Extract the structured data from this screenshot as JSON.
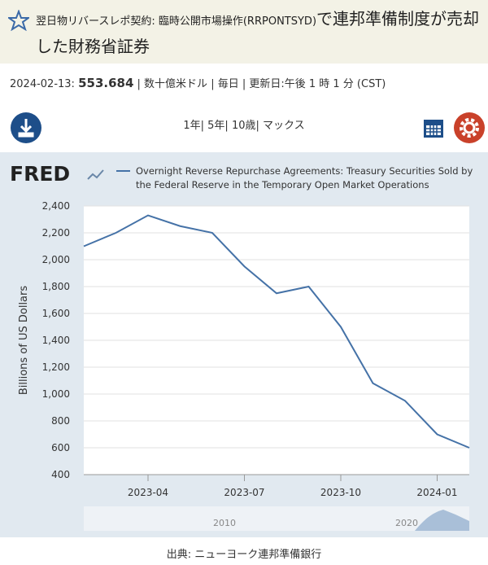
{
  "header": {
    "title_code": "翌日物リバースレポ契約: 臨時公開市場操作(RRPONTSYD)",
    "title_rest": "で連邦準備制度が売却した財務省証券"
  },
  "info": {
    "date": "2024-02-13:",
    "value": "553.684",
    "details": "| 数十億米ドル | 毎日 | 更新日:午後 1 時 1 分 (CST)"
  },
  "ranges": "1年| 5年| 10歳| マックス",
  "source": "出典: ニューヨーク連邦準備銀行",
  "chart_data": {
    "type": "line",
    "logo": "FRED",
    "legend": [
      "Overnight Reverse Repurchase Agreements: Treasury Securities Sold by",
      "the Federal Reserve in the Temporary Open Market Operations"
    ],
    "ylabel": "Billions of US Dollars",
    "x": [
      "2023-02",
      "2023-03",
      "2023-04",
      "2023-05",
      "2023-06",
      "2023-07",
      "2023-08",
      "2023-09",
      "2023-10",
      "2023-11",
      "2023-12",
      "2024-01",
      "2024-02"
    ],
    "series": [
      {
        "name": "RRPONTSYD",
        "color": "#4572a7",
        "values": [
          2100,
          2200,
          2330,
          2250,
          2200,
          1950,
          1750,
          1800,
          1500,
          1080,
          950,
          700,
          600
        ]
      }
    ],
    "xlim": [
      "2023-02",
      "2024-02"
    ],
    "xticks": [
      "2023-04",
      "2023-07",
      "2023-10",
      "2024-01"
    ],
    "ylim": [
      400,
      2400
    ],
    "yticks": [
      400,
      600,
      800,
      {
        "value": 1000,
        "label": "1,000"
      },
      {
        "value": 1200,
        "label": "1,200"
      },
      {
        "value": 1400,
        "label": "1,400"
      },
      {
        "value": 1600,
        "label": "1,600"
      },
      {
        "value": 1800,
        "label": "1,800"
      },
      {
        "value": 2000,
        "label": "2,000"
      },
      {
        "value": 2200,
        "label": "2,200"
      },
      {
        "value": 2400,
        "label": "2,400"
      }
    ],
    "grid": true,
    "navigator_labels": [
      "2010",
      "2020"
    ]
  }
}
